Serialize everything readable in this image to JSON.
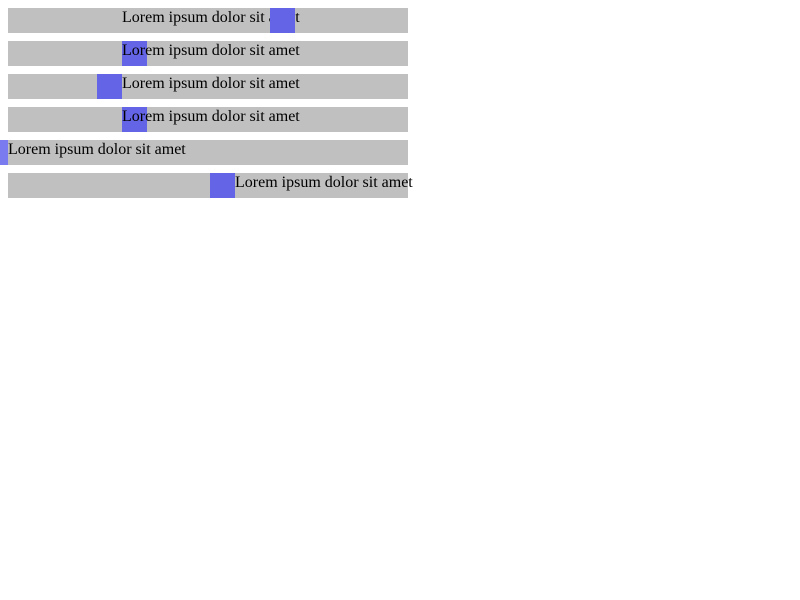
{
  "rows": [
    {
      "text": "Lorem ipsum dolor sit amet"
    },
    {
      "text": "Lorem ipsum dolor sit amet"
    },
    {
      "text": "Lorem ipsum dolor sit amet"
    },
    {
      "text": "Lorem ipsum dolor sit amet"
    },
    {
      "text": "Lorem ipsum dolor sit amet"
    },
    {
      "text": "Lorem ipsum dolor sit amet"
    }
  ],
  "colors": {
    "row_background": "#c0c0c0",
    "marker": "#6464e6",
    "marker_edge": "#7b7bf0",
    "text": "#000000",
    "page_background": "#ffffff"
  }
}
